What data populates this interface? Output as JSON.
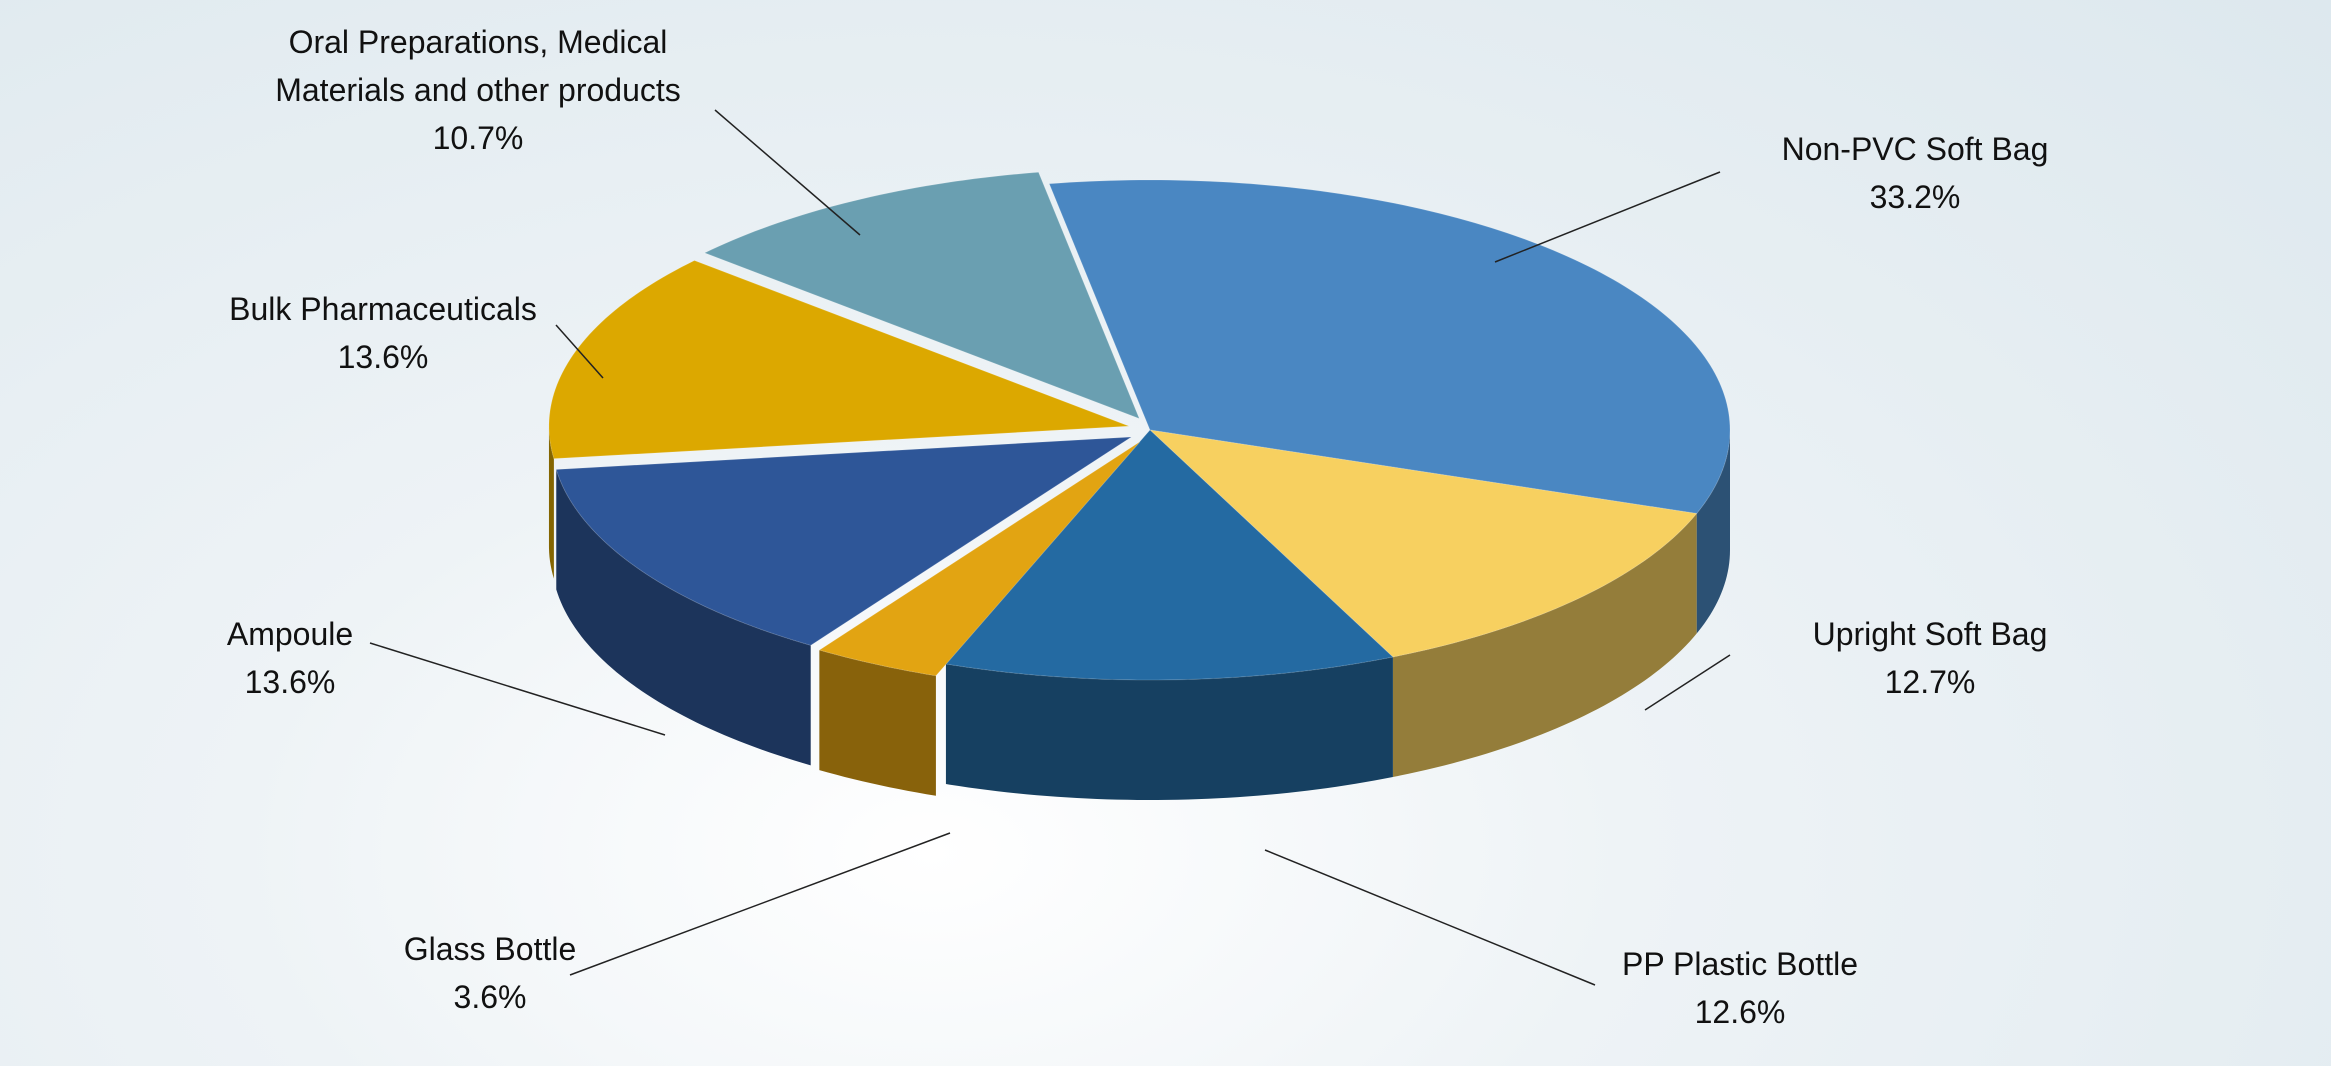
{
  "chart_data": {
    "type": "pie",
    "categories": [
      "Non-PVC Soft Bag",
      "Upright Soft Bag",
      "PP Plastic Bottle",
      "Glass Bottle",
      "Ampoule",
      "Bulk Pharmaceuticals",
      "Oral Preparations, Medical Materials and other products"
    ],
    "values": [
      33.2,
      12.7,
      12.6,
      3.6,
      13.6,
      13.6,
      10.7
    ],
    "value_labels": [
      "33.2%",
      "12.7%",
      "12.6%",
      "3.6%",
      "13.6%",
      "13.6%",
      "10.7%"
    ],
    "colors": [
      "#4a87c2",
      "#f7d060",
      "#246aa2",
      "#e2a412",
      "#2e5698",
      "#dca800",
      "#6a9fb1"
    ]
  }
}
